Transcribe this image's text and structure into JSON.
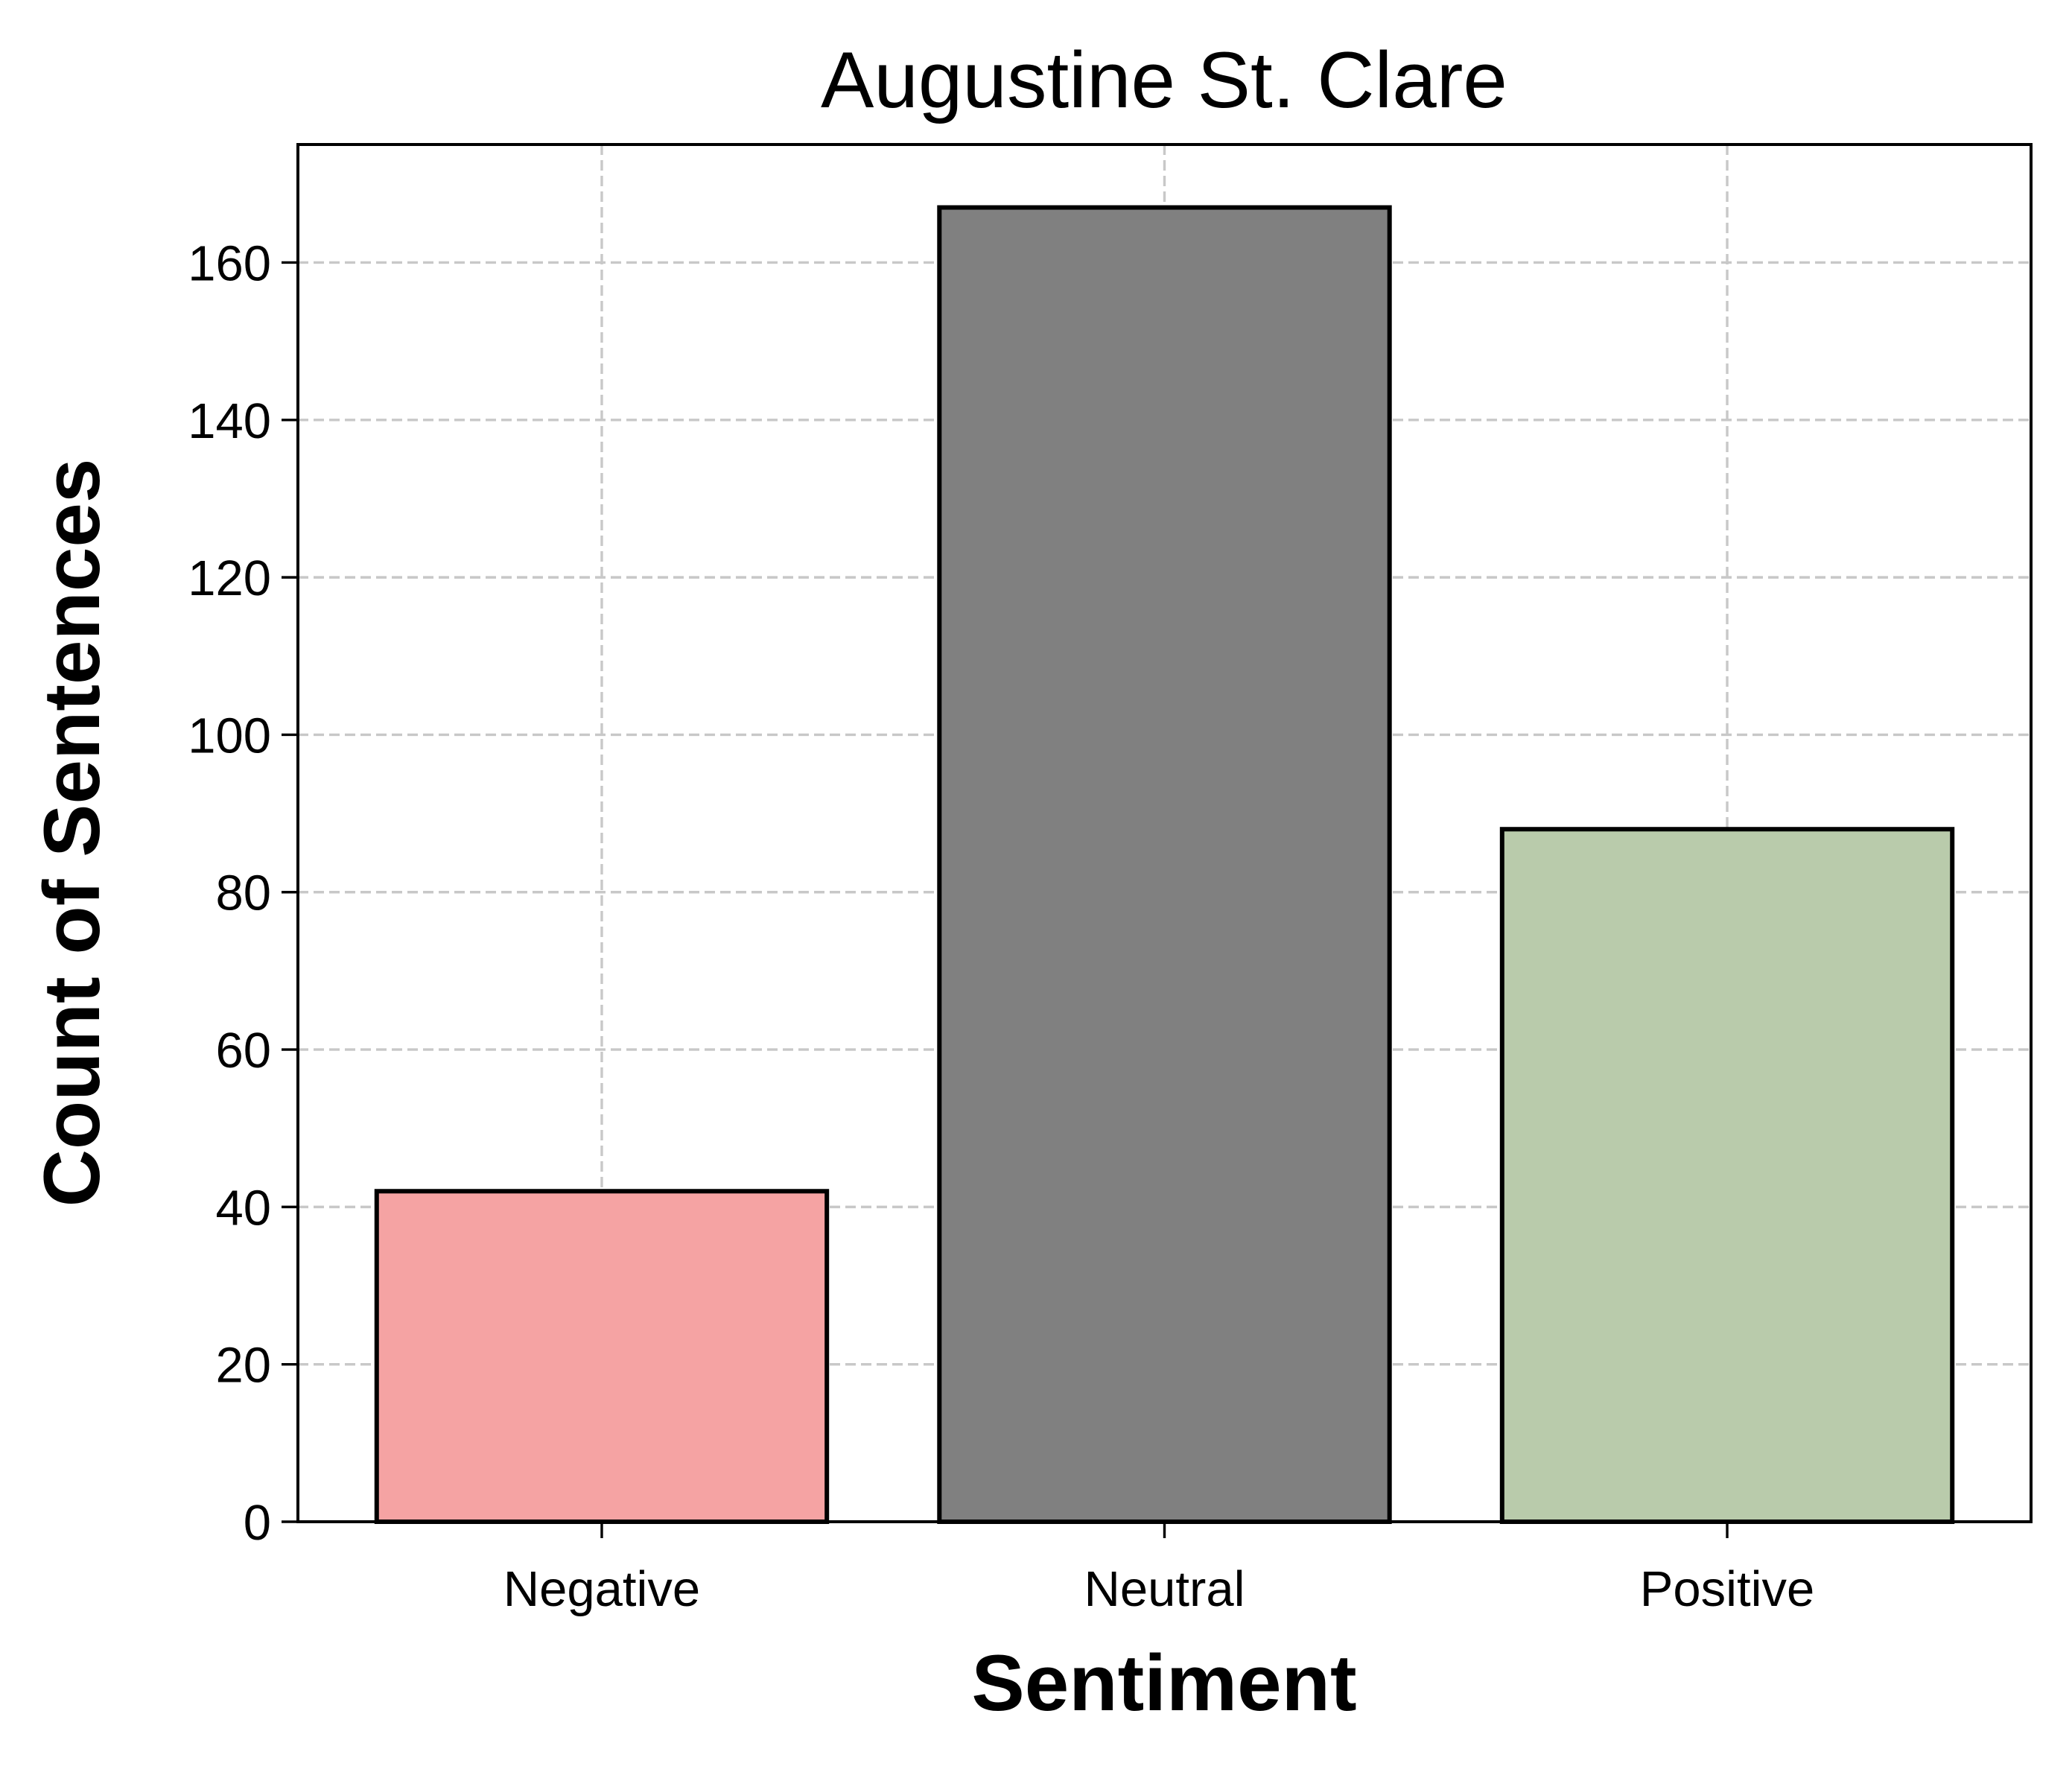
{
  "chart_data": {
    "type": "bar",
    "title": "Augustine St. Clare",
    "xlabel": "Sentiment",
    "ylabel": "Count of Sentences",
    "categories": [
      "Negative",
      "Neutral",
      "Positive"
    ],
    "values": [
      42,
      167,
      88
    ],
    "colors": [
      "#f5a3a3",
      "#808080",
      "#b9cbab"
    ],
    "edge_color": "#000000",
    "ylim": [
      0,
      175
    ],
    "yticks": [
      0,
      20,
      40,
      60,
      80,
      100,
      120,
      140,
      160
    ],
    "ytick_labels": [
      "0",
      "20",
      "40",
      "60",
      "80",
      "100",
      "120",
      "140",
      "160"
    ],
    "grid": true,
    "grid_style": "dashed",
    "grid_color": "#c8c8c8"
  }
}
